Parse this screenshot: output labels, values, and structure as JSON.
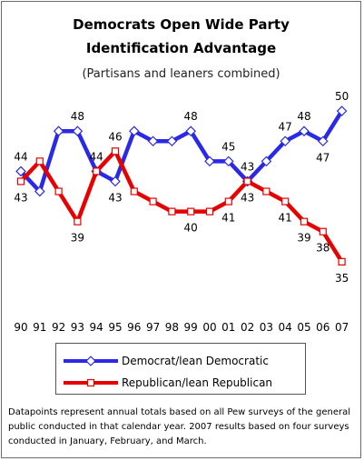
{
  "chart_data": {
    "type": "line",
    "title_line1": "Democrats Open Wide Party",
    "title_line2": "Identification Advantage",
    "subtitle": "(Partisans and leaners combined)",
    "categories": [
      "90",
      "91",
      "92",
      "93",
      "94",
      "95",
      "96",
      "97",
      "98",
      "99",
      "00",
      "01",
      "02",
      "03",
      "04",
      "05",
      "06",
      "07"
    ],
    "series": [
      {
        "name": "Democrat/lean Democratic",
        "color": "#2a2ae6",
        "values": [
          44,
          42,
          48,
          48,
          44,
          43,
          48,
          47,
          47,
          48,
          45,
          45,
          43,
          45,
          47,
          48,
          47,
          50
        ],
        "labels": [
          "44",
          "",
          "",
          "48",
          "44",
          "43",
          "",
          "",
          "",
          "48",
          "",
          "45",
          "43",
          "",
          "47",
          "48",
          "47",
          "50"
        ]
      },
      {
        "name": "Republican/lean Republican",
        "color": "#e60000",
        "values": [
          43,
          45,
          42,
          39,
          44,
          46,
          42,
          41,
          40,
          40,
          40,
          41,
          43,
          42,
          41,
          39,
          38,
          35
        ],
        "labels": [
          "43",
          "",
          "",
          "39",
          "",
          "46",
          "",
          "",
          "",
          "40",
          "",
          "41",
          "43",
          "",
          "41",
          "39",
          "38",
          "35"
        ]
      }
    ],
    "ylim": [
      33,
      52
    ],
    "grid": false,
    "legend_position": "bottom"
  },
  "footnote": "Datapoints represent annual totals based on all Pew surveys of the general public conducted in that calendar year. 2007 results based on four surveys conducted in January, February, and March."
}
